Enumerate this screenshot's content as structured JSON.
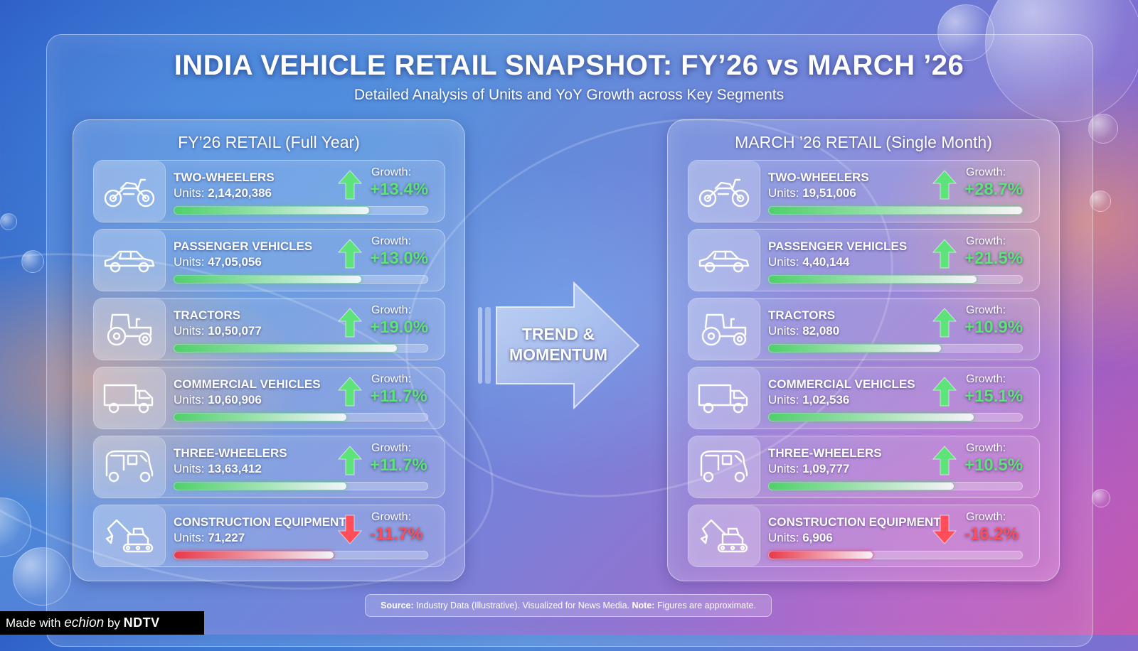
{
  "title": "INDIA VEHICLE RETAIL SNAPSHOT: FY’26 vs MARCH ’26",
  "subtitle": "Detailed Analysis of Units and YoY Growth across Key Segments",
  "colors": {
    "positive": "#5ee27a",
    "negative": "#ff4d5a",
    "positive_bar": "#4fd06a",
    "negative_bar": "#e8394a"
  },
  "center_label": {
    "line1": "TREND &",
    "line2": "MOMENTUM"
  },
  "growth_label": "Growth:",
  "units_label": "Units:",
  "panels": [
    {
      "title": "FY’26 RETAIL (Full Year)",
      "segments": [
        {
          "name": "TWO-WHEELERS",
          "icon": "motorcycle-icon",
          "units": "2,14,20,386",
          "growth": "+13.4%",
          "direction": "up",
          "bar_fill": 0.77
        },
        {
          "name": "PASSENGER VEHICLES",
          "icon": "car-icon",
          "units": "47,05,056",
          "growth": "+13.0%",
          "direction": "up",
          "bar_fill": 0.74
        },
        {
          "name": "TRACTORS",
          "icon": "tractor-icon",
          "units": "10,50,077",
          "growth": "+19.0%",
          "direction": "up",
          "bar_fill": 0.88
        },
        {
          "name": "COMMERCIAL VEHICLES",
          "icon": "truck-icon",
          "units": "10,60,906",
          "growth": "+11.7%",
          "direction": "up",
          "bar_fill": 0.68
        },
        {
          "name": "THREE-WHEELERS",
          "icon": "auto-rickshaw-icon",
          "units": "13,63,412",
          "growth": "+11.7%",
          "direction": "up",
          "bar_fill": 0.68
        },
        {
          "name": "CONSTRUCTION EQUIPMENT",
          "icon": "excavator-icon",
          "units": "71,227",
          "growth": "-11.7%",
          "direction": "down",
          "bar_fill": 0.63
        }
      ]
    },
    {
      "title": "MARCH ’26 RETAIL (Single Month)",
      "segments": [
        {
          "name": "TWO-WHEELERS",
          "icon": "motorcycle-icon",
          "units": "19,51,006",
          "growth": "+28.7%",
          "direction": "up",
          "bar_fill": 1.0
        },
        {
          "name": "PASSENGER VEHICLES",
          "icon": "car-icon",
          "units": "4,40,144",
          "growth": "+21.5%",
          "direction": "up",
          "bar_fill": 0.82
        },
        {
          "name": "TRACTORS",
          "icon": "tractor-icon",
          "units": "82,080",
          "growth": "+10.9%",
          "direction": "up",
          "bar_fill": 0.68
        },
        {
          "name": "COMMERCIAL VEHICLES",
          "icon": "truck-icon",
          "units": "1,02,536",
          "growth": "+15.1%",
          "direction": "up",
          "bar_fill": 0.81
        },
        {
          "name": "THREE-WHEELERS",
          "icon": "auto-rickshaw-icon",
          "units": "1,09,777",
          "growth": "+10.5%",
          "direction": "up",
          "bar_fill": 0.73
        },
        {
          "name": "CONSTRUCTION EQUIPMENT",
          "icon": "excavator-icon",
          "units": "6,906",
          "growth": "-16.2%",
          "direction": "down",
          "bar_fill": 0.41
        }
      ]
    }
  ],
  "footer": {
    "source_label": "Source:",
    "source_text": "Industry Data (Illustrative). Visualized for News Media.",
    "note_label": "Note:",
    "note_text": "Figures are approximate."
  },
  "badge": {
    "prefix": "Made with",
    "brand": "echion",
    "by": "by",
    "owner": "NDTV"
  }
}
